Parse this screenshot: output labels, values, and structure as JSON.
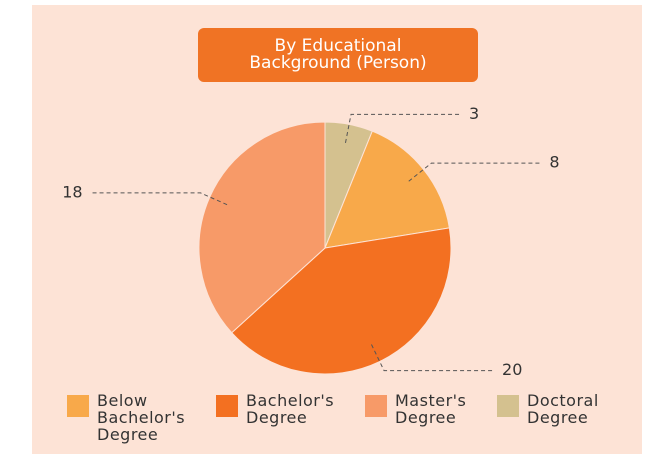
{
  "chart_data": {
    "type": "pie",
    "title": "By Educational Background (Person)",
    "categories": [
      "Below Bachelor's Degree",
      "Bachelor's Degree",
      "Master's Degree",
      "Doctoral Degree"
    ],
    "values": [
      8,
      20,
      18,
      3
    ],
    "colors": [
      "#f8a94a",
      "#f37021",
      "#f79a68",
      "#d4c18f"
    ],
    "legend": "bottom"
  }
}
